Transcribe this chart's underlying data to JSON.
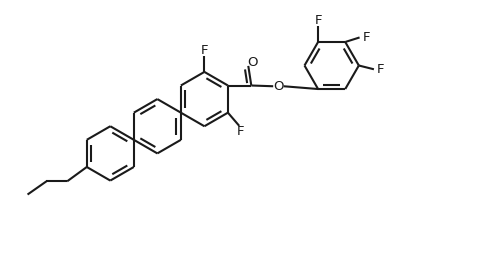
{
  "bg_color": "#ffffff",
  "line_color": "#1a1a1a",
  "line_width": 1.5,
  "figsize": [
    4.96,
    2.54
  ],
  "dpi": 100,
  "xlim": [
    -1.5,
    11.5
  ],
  "ylim": [
    -1.0,
    5.5
  ]
}
